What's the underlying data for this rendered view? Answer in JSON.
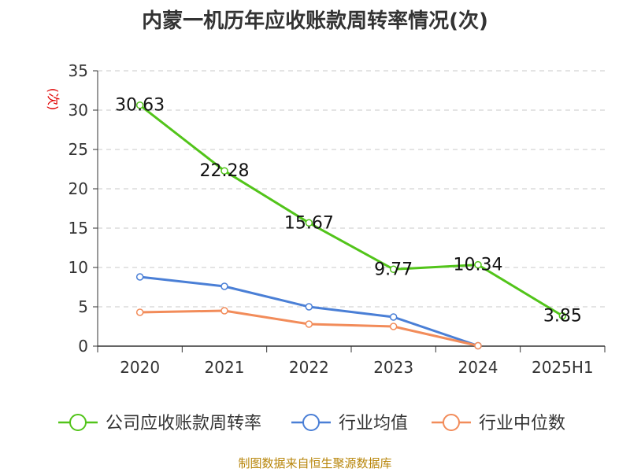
{
  "chart_data": {
    "type": "line",
    "title": "内蒙一机历年应收账款周转率情况(次)",
    "ylabel": "(次)",
    "categories": [
      "2020",
      "2021",
      "2022",
      "2023",
      "2024",
      "2025H1"
    ],
    "ylim": [
      0,
      35
    ],
    "yticks": [
      0,
      5,
      10,
      15,
      20,
      25,
      30,
      35
    ],
    "grid": true,
    "legend_position": "bottom",
    "series": [
      {
        "name": "公司应收账款周转率",
        "color": "#52c41a",
        "values": [
          30.63,
          22.28,
          15.67,
          9.77,
          10.34,
          3.85
        ],
        "labels": [
          "30.63",
          "22.28",
          "15.67",
          "9.77",
          "10.34",
          "3.85"
        ]
      },
      {
        "name": "行业均值",
        "color": "#4a7fd6",
        "values": [
          8.8,
          7.6,
          5.0,
          3.7,
          0.05,
          null
        ]
      },
      {
        "name": "行业中位数",
        "color": "#f28c5a",
        "values": [
          4.3,
          4.5,
          2.8,
          2.5,
          0.05,
          null
        ]
      }
    ]
  },
  "footer": {
    "source": "制图数据来自恒生聚源数据库"
  }
}
